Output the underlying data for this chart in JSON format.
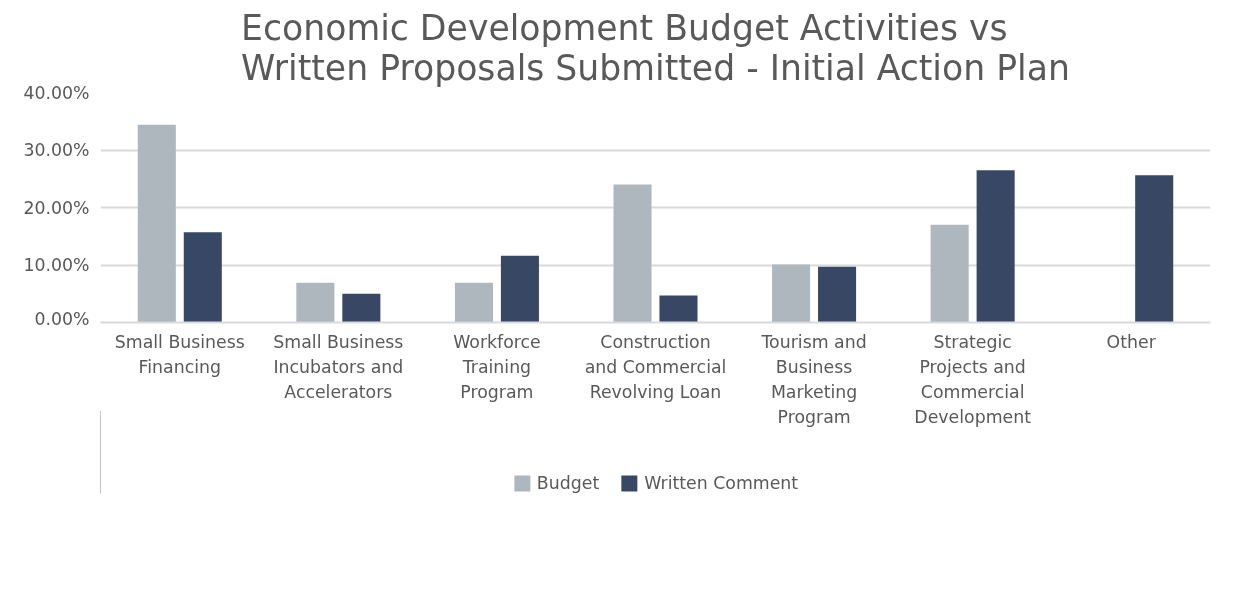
{
  "chart_data": {
    "type": "bar",
    "title": "Economic Development Budget Activities vs\nWritten Proposals Submitted - Initial Action Plan",
    "categories": [
      "Small Business Financing",
      "Small Business Incubators and Accelerators",
      "Workforce Training Program",
      "Construction and Commercial Revolving Loan",
      "Tourism and Business Marketing Program",
      "Strategic Projects and Commercial Development",
      "Other"
    ],
    "series": [
      {
        "name": "Budget",
        "color": "#aeb6be",
        "values": [
          34.4,
          6.9,
          6.9,
          24.0,
          10.1,
          17.0,
          0
        ]
      },
      {
        "name": "Written Comment",
        "color": "#384764",
        "values": [
          15.7,
          5.0,
          11.6,
          4.7,
          9.7,
          26.5,
          25.6
        ]
      }
    ],
    "ylim": [
      0,
      40
    ],
    "yticks": [
      {
        "value": 0,
        "label": "0.00%"
      },
      {
        "value": 10,
        "label": "10.00%"
      },
      {
        "value": 20,
        "label": "20.00%"
      },
      {
        "value": 30,
        "label": "30.00%"
      },
      {
        "value": 40,
        "label": "40.00%"
      }
    ],
    "grid": "y",
    "legend": "bottom"
  }
}
